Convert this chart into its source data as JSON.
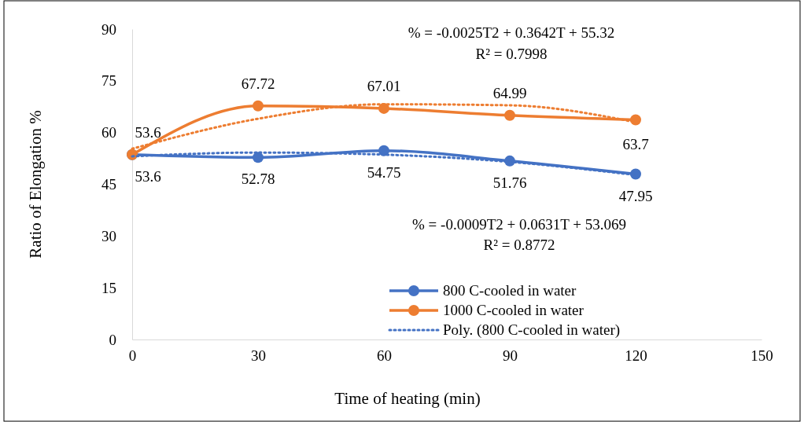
{
  "chart_data": {
    "type": "line",
    "xlabel": "Time of heating (min)",
    "ylabel": "Ratio of Elongation %",
    "x": [
      0,
      30,
      60,
      90,
      120
    ],
    "series": [
      {
        "name": "800 C-cooled in water",
        "color": "#4472c4",
        "values": [
          53.6,
          52.78,
          54.75,
          51.76,
          47.95
        ],
        "value_labels": [
          "53.6",
          "52.78",
          "54.75",
          "51.76",
          "47.95"
        ],
        "marker": "circle",
        "line_style": "solid"
      },
      {
        "name": "1000 C-cooled in water",
        "color": "#ed7d31",
        "values": [
          53.6,
          67.72,
          67.01,
          64.99,
          63.7
        ],
        "value_labels": [
          "53.6",
          "67.72",
          "67.01",
          "64.99",
          "63.7"
        ],
        "marker": "circle",
        "line_style": "solid"
      },
      {
        "name": "Poly. (800 C-cooled in water)",
        "color": "#4472c4",
        "values": [
          53.1,
          54.2,
          53.6,
          51.5,
          47.7
        ],
        "marker": "none",
        "line_style": "dotted"
      },
      {
        "color": "#ed7d31",
        "values": [
          55.3,
          64.0,
          68.2,
          67.9,
          63.0
        ],
        "marker": "none",
        "line_style": "dotted"
      }
    ],
    "xlim": [
      0,
      150
    ],
    "xticks": [
      0,
      30,
      60,
      90,
      120,
      150
    ],
    "ylim": [
      0,
      90
    ],
    "yticks": [
      0,
      15,
      30,
      45,
      60,
      75,
      90
    ],
    "grid": false,
    "legend": "bottom right",
    "annotations": [
      "% = -0.0025T2 + 0.3642T + 55.32",
      "R² = 0.7998",
      "% = -0.0009T2 + 0.0631T + 53.069",
      "R² = 0.8772"
    ]
  }
}
